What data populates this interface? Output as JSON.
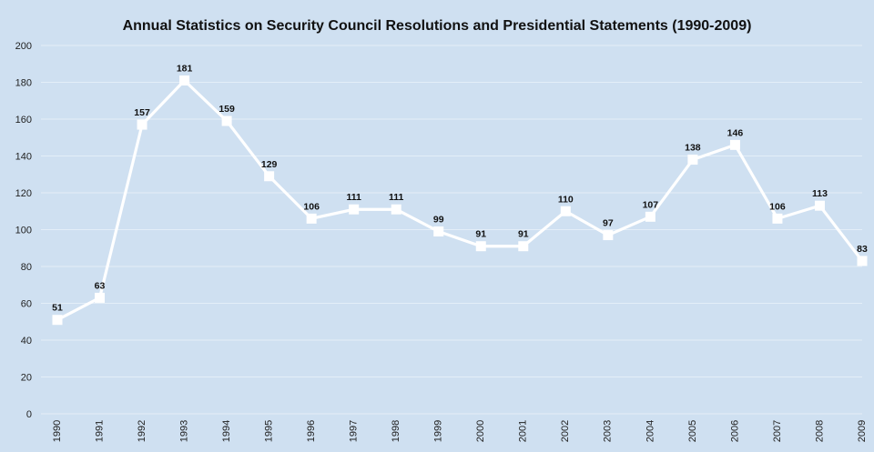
{
  "chart_data": {
    "type": "line",
    "title": "Annual Statistics on Security Council Resolutions and Presidential Statements (1990-2009)",
    "xlabel": "",
    "ylabel": "",
    "x": [
      "1990",
      "1991",
      "1992",
      "1993",
      "1994",
      "1995",
      "1996",
      "1997",
      "1998",
      "1999",
      "2000",
      "2001",
      "2002",
      "2003",
      "2004",
      "2005",
      "2006",
      "2007",
      "2008",
      "2009"
    ],
    "series": [
      {
        "values": [
          51,
          63,
          157,
          181,
          159,
          129,
          106,
          111,
          111,
          99,
          91,
          91,
          110,
          97,
          107,
          138,
          146,
          106,
          113,
          83
        ]
      }
    ],
    "ylim": [
      0,
      200
    ],
    "yticks": [
      0,
      20,
      40,
      60,
      80,
      100,
      120,
      140,
      160,
      180,
      200
    ],
    "grid": true,
    "legend": "none",
    "data_labels": true,
    "colors": {
      "background": "#cfe0f1",
      "line": "#ffffff",
      "gridline": "#e4eef8",
      "text": "#111111"
    }
  }
}
